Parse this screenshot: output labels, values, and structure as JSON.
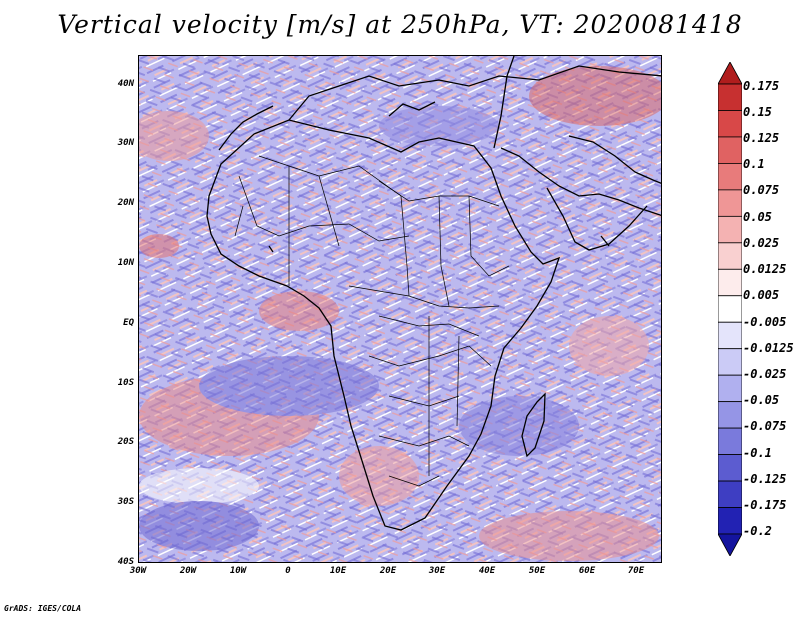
{
  "title": "Vertical velocity [m/s] at 250hPa, VT: 2020081418",
  "footer": "GrADS: IGES/COLA",
  "lat_labels": [
    "40N",
    "30N",
    "20N",
    "10N",
    "EQ",
    "10S",
    "20S",
    "30S",
    "40S"
  ],
  "lon_labels": [
    "30W",
    "20W",
    "10W",
    "0",
    "10E",
    "20E",
    "30E",
    "40E",
    "50E",
    "60E",
    "70E"
  ],
  "colorbar": {
    "labels": [
      "0.175",
      "0.15",
      "0.125",
      "0.1",
      "0.075",
      "0.05",
      "0.025",
      "0.0125",
      "0.005",
      "-0.005",
      "-0.0125",
      "-0.025",
      "-0.05",
      "-0.075",
      "-0.1",
      "-0.125",
      "-0.175",
      "-0.2"
    ],
    "colors": [
      "#b01d1d",
      "#c73030",
      "#d84848",
      "#e06262",
      "#e87b7b",
      "#ef9696",
      "#f4b2b2",
      "#f9d0d0",
      "#fdecec",
      "#ffffff",
      "#e4e4fb",
      "#cbcbf6",
      "#b0b0ef",
      "#9595e6",
      "#7a7adc",
      "#5c5cd0",
      "#3e3ec2",
      "#2222b3",
      "#14149e"
    ]
  }
}
